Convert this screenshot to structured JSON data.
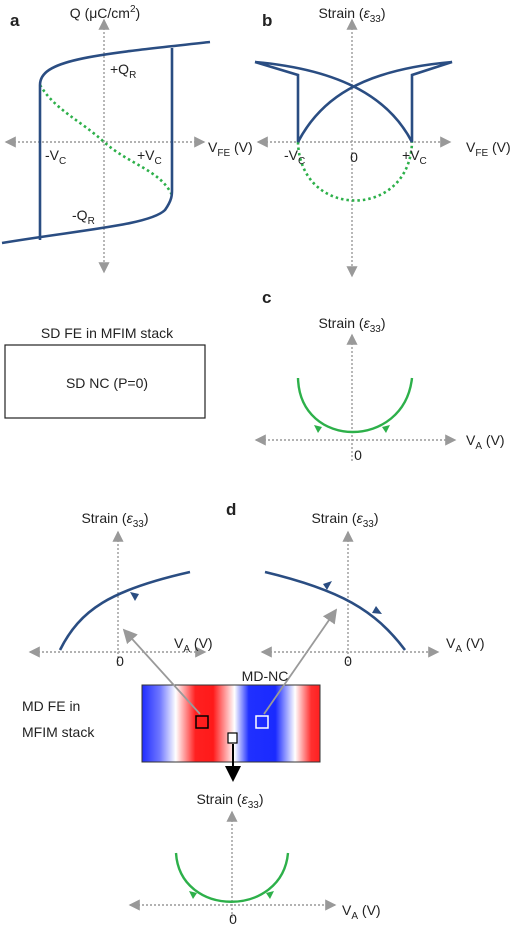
{
  "panel_labels": [
    "a",
    "b",
    "c",
    "d"
  ],
  "panel_a": {
    "y_axis": {
      "text": "Q (μC/cm",
      "sup": "2",
      "tail": ")"
    },
    "x_axis": {
      "text": "V",
      "sub": "FE",
      "tail": " (V)"
    },
    "plus_qr": {
      "text": "+Q",
      "sub": "R"
    },
    "minus_qr": {
      "text": "-Q",
      "sub": "R"
    },
    "minus_vc": {
      "text": "-V",
      "sub": "C"
    },
    "plus_vc": {
      "text": "+V",
      "sub": "C"
    }
  },
  "panel_b": {
    "y_axis": {
      "text": "Strain (",
      "symbol": "ε",
      "sub": "33",
      "tail": ")"
    },
    "x_axis": {
      "text": "V",
      "sub": "FE",
      "tail": " (V)"
    },
    "minus_vc": {
      "text": "-V",
      "sub": "C"
    },
    "zero": "0",
    "plus_vc": {
      "text": "+V",
      "sub": "C"
    }
  },
  "sd_box": {
    "title": "SD FE in MFIM stack",
    "label": "SD NC (P=0)"
  },
  "panel_c": {
    "y_axis": {
      "text": "Strain (",
      "symbol": "ε",
      "sub": "33",
      "tail": ")"
    },
    "x_axis": {
      "text": "V",
      "sub": "A",
      "tail": " (V)"
    },
    "zero": "0"
  },
  "panel_d": {
    "left_plot": {
      "y_axis": {
        "text": "Strain (",
        "symbol": "ε",
        "sub": "33",
        "tail": ")"
      },
      "x_axis": {
        "text": "V",
        "sub": "A",
        "tail": " (V)"
      },
      "zero": "0"
    },
    "right_plot": {
      "y_axis": {
        "text": "Strain (",
        "symbol": "ε",
        "sub": "33",
        "tail": ")"
      },
      "x_axis": {
        "text": "V",
        "sub": "A",
        "tail": " (V)"
      },
      "zero": "0"
    },
    "md_label": [
      "MD FE in",
      "MFIM stack"
    ],
    "md_nc": "MD-NC",
    "bottom_plot": {
      "y_axis": {
        "text": "Strain (",
        "symbol": "ε",
        "sub": "33",
        "tail": ")"
      },
      "x_axis": {
        "text": "V",
        "sub": "A",
        "tail": " (V)"
      },
      "zero": "0"
    }
  }
}
